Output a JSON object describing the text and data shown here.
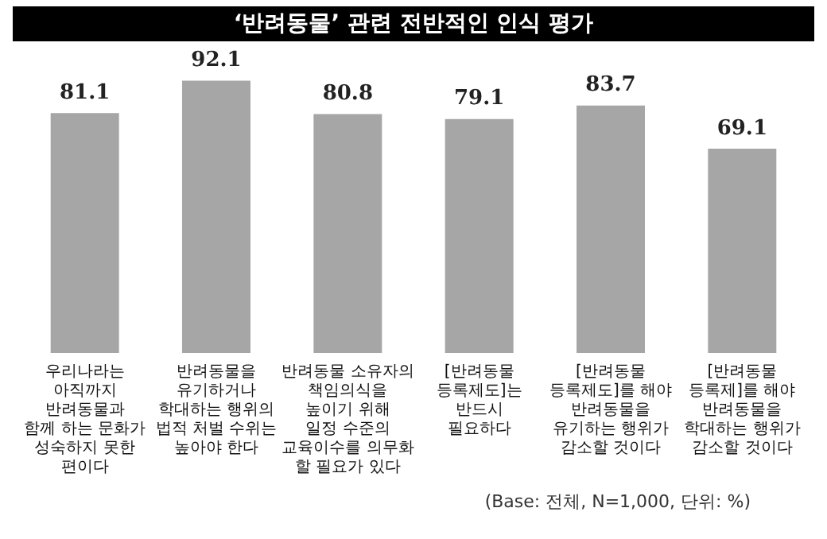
{
  "chart_data": {
    "type": "bar",
    "title": "‘반려동물’ 관련 전반적인 인식 평가",
    "categories": [
      "우리나라는\n아직까지\n반려동물과\n함께 하는 문화가\n성숙하지 못한\n편이다",
      "반려동물을\n유기하거나\n학대하는 행위의\n법적 처벌 수위는\n높아야 한다",
      "반려동물 소유자의\n책임의식을\n높이기 위해\n일정 수준의\n교육이수를 의무화\n할 필요가 있다",
      "[반려동물\n등록제도]는\n반드시\n필요하다",
      "[반려동물\n등록제도]를 해야\n반려동물을\n유기하는 행위가\n감소할 것이다",
      "[반려동물\n등록제]를 해야\n반려동물을\n학대하는 행위가\n감소할 것이다"
    ],
    "values": [
      81.1,
      92.1,
      80.8,
      79.1,
      83.7,
      69.1
    ],
    "color": "#a6a6a6",
    "data_labels": true,
    "grid": false,
    "legend": false,
    "annotations": [
      "(Base: 전체, N=1,000, 단위: %)"
    ]
  }
}
